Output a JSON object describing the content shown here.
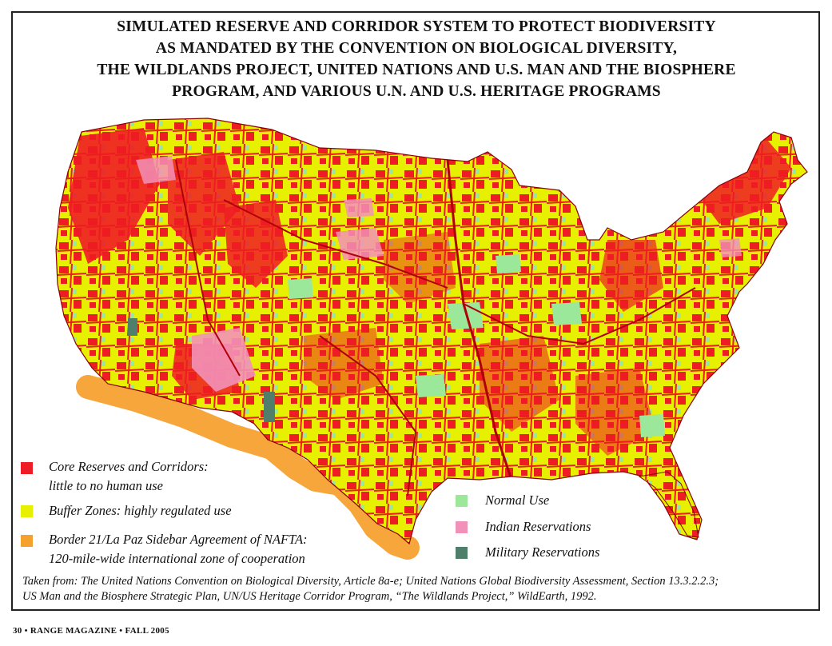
{
  "title_lines": [
    "SIMULATED RESERVE AND CORRIDOR SYSTEM TO PROTECT BIODIVERSITY",
    "AS MANDATED BY THE CONVENTION ON BIOLOGICAL DIVERSITY,",
    "THE WILDLANDS PROJECT, UNITED NATIONS AND U.S. MAN AND THE BIOSPHERE",
    "PROGRAM, AND VARIOUS U.N. AND U.S. HERITAGE PROGRAMS"
  ],
  "colors": {
    "core": "#ee1c24",
    "buffer": "#e6f000",
    "border_zone": "#f5a130",
    "normal": "#9be89a",
    "indian": "#f291b8",
    "military": "#4f7f6a"
  },
  "legend_left": [
    {
      "key": "core",
      "lines": [
        "Core Reserves and Corridors:",
        "little to no human use"
      ]
    },
    {
      "key": "buffer",
      "lines": [
        "Buffer Zones: highly regulated use"
      ]
    },
    {
      "key": "border_zone",
      "lines": [
        "Border 21/La Paz Sidebar Agreement of NAFTA:",
        "120-mile-wide international zone of cooperation"
      ]
    }
  ],
  "legend_right": [
    {
      "key": "normal",
      "label": "Normal Use"
    },
    {
      "key": "indian",
      "label": "Indian Reservations"
    },
    {
      "key": "military",
      "label": "Military Reservations"
    }
  ],
  "source_lines": [
    "Taken from: The United Nations Convention on Biological Diversity, Article 8a-e; United Nations Global Biodiversity Assessment, Section 13.3.2.2.3;",
    "US Man and the Biosphere Strategic Plan, UN/US Heritage Corridor Program, “The Wildlands Project,” WildEarth, 1992."
  ],
  "footer": "30  •  RANGE MAGAZINE  •  FALL 2005"
}
